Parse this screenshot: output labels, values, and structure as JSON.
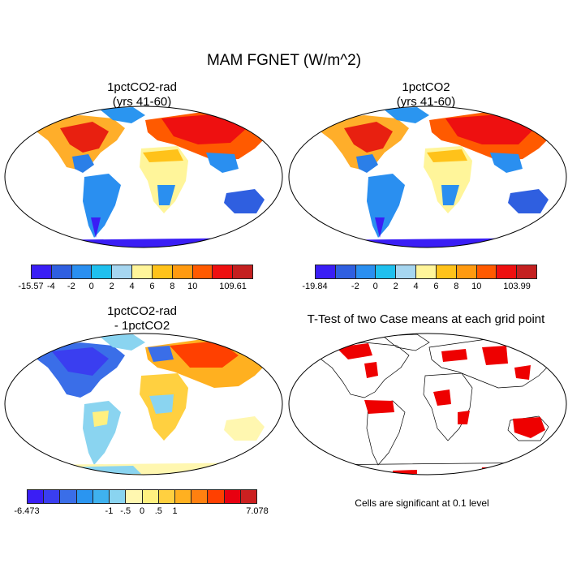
{
  "figure_title": "MAM FGNET (W/m^2)",
  "panels": [
    {
      "id": "p1",
      "title_line1": "1pctCO2-rad",
      "title_line2": "(yrs 41-60)"
    },
    {
      "id": "p2",
      "title_line1": "1pctCO2",
      "title_line2": "(yrs 41-60)"
    },
    {
      "id": "p3",
      "title_line1": "1pctCO2-rad",
      "title_line2": "- 1pctCO2"
    },
    {
      "id": "p4",
      "title_line1": "T-Test of two Case means at each grid point",
      "title_line2": ""
    }
  ],
  "colorbars": {
    "cb1": {
      "colors": [
        "#3a1ef5",
        "#2f5fe0",
        "#2a8ff0",
        "#1fc0ee",
        "#a6d6f0",
        "#fff59a",
        "#ffc21a",
        "#ff9a10",
        "#ff5a00",
        "#ee1010",
        "#c42020"
      ],
      "tick_labels": [
        "-15.57",
        "-4",
        "-2",
        "0",
        "2",
        "4",
        "6",
        "8",
        "10",
        "109.61"
      ]
    },
    "cb2": {
      "colors": [
        "#3a1ef5",
        "#2f5fe0",
        "#2a8ff0",
        "#1fc0ee",
        "#a6d6f0",
        "#fff59a",
        "#ffc21a",
        "#ff9a10",
        "#ff5a00",
        "#ee1010",
        "#c42020"
      ],
      "tick_labels": [
        "-19.84",
        "-2",
        "0",
        "2",
        "4",
        "6",
        "8",
        "10",
        "103.99"
      ]
    },
    "cb3": {
      "colors": [
        "#3a1ef5",
        "#3a3ef0",
        "#3a6ee8",
        "#2a95f0",
        "#3fb2ef",
        "#8ad4f0",
        "#fff7b0",
        "#fff080",
        "#ffd040",
        "#ffb020",
        "#ff8010",
        "#ff4000",
        "#e80010",
        "#cc2020"
      ],
      "tick_labels": [
        "-6.473",
        "-1",
        "-.5",
        "0",
        ".5",
        "1",
        "7.078"
      ]
    }
  },
  "significance_note": "Cells are significant at 0.1 level"
}
